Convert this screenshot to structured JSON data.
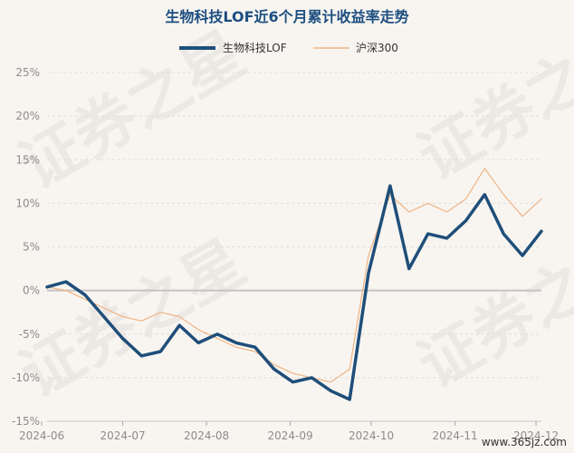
{
  "chart_data": {
    "type": "line",
    "title": "生物科技LOF近6个月累计收益率走势",
    "xlabel": "",
    "ylabel": "",
    "ylim": [
      -15,
      25
    ],
    "y_ticks": [
      "25%",
      "20%",
      "15%",
      "10%",
      "5%",
      "0%",
      "-5%",
      "-10%",
      "-15%"
    ],
    "x_ticks": [
      "2024-06",
      "2024-07",
      "2024-08",
      "2024-09",
      "2024-10",
      "2024-11",
      "2024-12"
    ],
    "grid": "horizontal dashed",
    "legend_position": "top-center",
    "x_start": "2024-06-03",
    "x_end": "2024-12-03",
    "dates": [
      "2024-06-03",
      "2024-06-10",
      "2024-06-17",
      "2024-06-24",
      "2024-07-01",
      "2024-07-08",
      "2024-07-15",
      "2024-07-22",
      "2024-07-29",
      "2024-08-05",
      "2024-08-12",
      "2024-08-19",
      "2024-08-26",
      "2024-09-02",
      "2024-09-09",
      "2024-09-16",
      "2024-09-23",
      "2024-09-30",
      "2024-10-08",
      "2024-10-15",
      "2024-10-22",
      "2024-10-29",
      "2024-11-05",
      "2024-11-12",
      "2024-11-19",
      "2024-11-26",
      "2024-12-03"
    ],
    "series": [
      {
        "name": "生物科技LOF",
        "color": "#1f4e79",
        "values": [
          0.4,
          1.0,
          -0.5,
          -3.0,
          -5.5,
          -7.5,
          -7.0,
          -4.0,
          -6.0,
          -5.0,
          -6.0,
          -6.5,
          -9.0,
          -10.5,
          -10.0,
          -11.5,
          -12.5,
          2.0,
          12.0,
          2.5,
          6.5,
          6.0,
          8.0,
          11.0,
          6.5,
          4.0,
          6.8
        ]
      },
      {
        "name": "沪深300",
        "color": "#f0b483",
        "values": [
          0.4,
          0.0,
          -1.0,
          -2.0,
          -3.0,
          -3.5,
          -2.5,
          -3.0,
          -4.5,
          -5.5,
          -6.5,
          -7.0,
          -8.5,
          -9.5,
          -10.0,
          -10.5,
          -9.0,
          4.0,
          11.0,
          9.0,
          10.0,
          9.0,
          10.5,
          14.0,
          11.0,
          8.5,
          10.5
        ]
      }
    ]
  },
  "watermark": {
    "text_a": "证券之星",
    "url": "www.365jz.com"
  }
}
